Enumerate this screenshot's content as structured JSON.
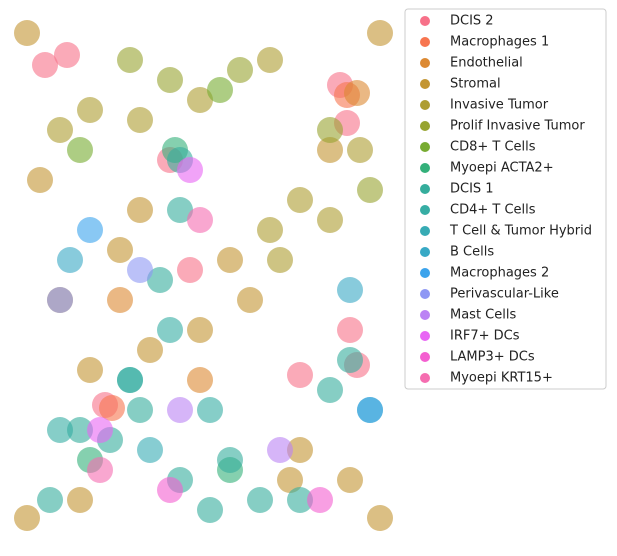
{
  "chart_data": {
    "type": "scatter",
    "series": [
      {
        "name": "DCIS 2",
        "color": "#f77189",
        "x": [
          313,
          320,
          18,
          40,
          273,
          323,
          330,
          78,
          143,
          163
        ],
        "y": [
          52,
          90,
          32,
          22,
          342,
          297,
          332,
          372,
          127,
          237
        ]
      },
      {
        "name": "Macrophages 1",
        "color": "#f7754f",
        "x": [
          320,
          85
        ],
        "y": [
          62,
          375
        ]
      },
      {
        "name": "Endothelial",
        "color": "#dc8932",
        "x": [
          93,
          173,
          330
        ],
        "y": [
          267,
          347,
          60
        ]
      },
      {
        "name": "Stromal",
        "color": "#c39532",
        "x": [
          0,
          353,
          0,
          353,
          33,
          173,
          273,
          93,
          223,
          53,
          323,
          123,
          13,
          263,
          203,
          113,
          63,
          303
        ],
        "y": [
          0,
          0,
          485,
          485,
          267,
          297,
          417,
          217,
          267,
          467,
          447,
          317,
          147,
          447,
          227,
          177,
          337,
          117
        ]
      },
      {
        "name": "Invasive Tumor",
        "color": "#ae9d31",
        "x": [
          63,
          173,
          243,
          273,
          333,
          243,
          113,
          303,
          253,
          33
        ],
        "y": [
          77,
          67,
          197,
          167,
          117,
          27,
          87,
          187,
          227,
          97
        ]
      },
      {
        "name": "Prolif Invasive Tumor",
        "color": "#97a431",
        "x": [
          103,
          213,
          303,
          143,
          343
        ],
        "y": [
          27,
          37,
          97,
          47,
          157
        ]
      },
      {
        "name": "CD8+ T Cells",
        "color": "#77ab31",
        "x": [
          193,
          53
        ],
        "y": [
          57,
          117
        ]
      },
      {
        "name": "Myoepi ACTA2+",
        "color": "#33b07a",
        "x": [
          148,
          63,
          203
        ],
        "y": [
          117,
          427,
          437
        ]
      },
      {
        "name": "DCIS 1",
        "color": "#35ad9c",
        "x": [
          153,
          153,
          113,
          83,
          153,
          203,
          233,
          273,
          23,
          133,
          323,
          183,
          53,
          103,
          303
        ],
        "y": [
          127,
          177,
          377,
          407,
          447,
          427,
          467,
          467,
          467,
          247,
          327,
          477,
          397,
          347,
          357
        ]
      },
      {
        "name": "CD4+ T Cells",
        "color": "#36ada4",
        "x": [
          103,
          33,
          183,
          143
        ],
        "y": [
          347,
          397,
          377,
          297
        ]
      },
      {
        "name": "T Cell & Tumor Hybrid",
        "color": "#37abb4",
        "x": [
          123,
          343
        ],
        "y": [
          417,
          377
        ]
      },
      {
        "name": "B Cells",
        "color": "#38a9c5",
        "x": [
          43,
          323
        ],
        "y": [
          227,
          257
        ]
      },
      {
        "name": "Macrophages 2",
        "color": "#3ba3ec",
        "x": [
          63,
          343
        ],
        "y": [
          197,
          377
        ]
      },
      {
        "name": "Perivascular-Like",
        "color": "#8e97f4",
        "x": [
          33,
          113
        ],
        "y": [
          267,
          237
        ]
      },
      {
        "name": "Mast Cells",
        "color": "#bb83f4",
        "x": [
          153,
          253
        ],
        "y": [
          377,
          417
        ]
      },
      {
        "name": "IRF7+ DCs",
        "color": "#e866f4",
        "x": [
          163,
          73
        ],
        "y": [
          137,
          397
        ]
      },
      {
        "name": "LAMP3+ DCs",
        "color": "#f45fd0",
        "x": [
          143,
          293
        ],
        "y": [
          457,
          467
        ]
      },
      {
        "name": "Myoepi KRT15+",
        "color": "#f56db0",
        "x": [
          173,
          73
        ],
        "y": [
          187,
          437
        ]
      }
    ]
  }
}
